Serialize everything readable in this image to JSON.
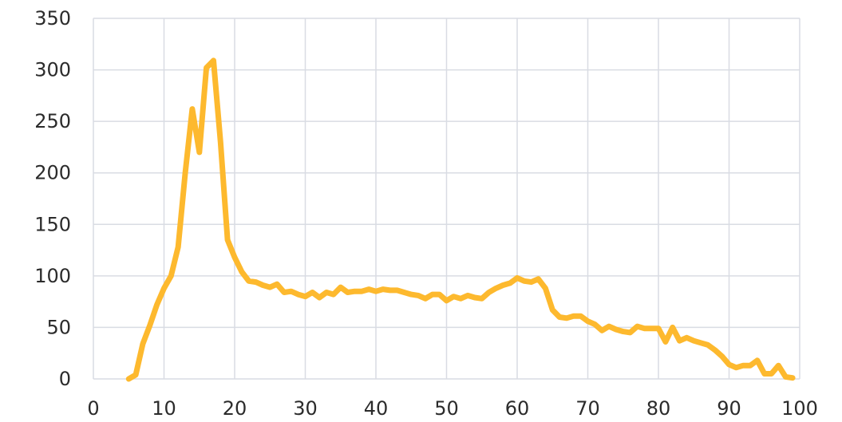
{
  "chart_data": {
    "type": "line",
    "title": "",
    "xlabel": "",
    "ylabel": "",
    "xlim": [
      0,
      100
    ],
    "ylim": [
      0,
      350
    ],
    "x_ticks": [
      0,
      10,
      20,
      30,
      40,
      50,
      60,
      70,
      80,
      90,
      100
    ],
    "y_ticks": [
      0,
      50,
      100,
      150,
      200,
      250,
      300,
      350
    ],
    "grid": true,
    "legend": "none",
    "series": [
      {
        "color": "#FDB92E",
        "x": [
          5,
          6,
          7,
          8,
          9,
          10,
          11,
          12,
          13,
          14,
          15,
          16,
          17,
          18,
          19,
          20,
          21,
          22,
          23,
          24,
          25,
          26,
          27,
          28,
          29,
          30,
          31,
          32,
          33,
          34,
          35,
          36,
          37,
          38,
          39,
          40,
          41,
          42,
          43,
          44,
          45,
          46,
          47,
          48,
          49,
          50,
          51,
          52,
          53,
          54,
          55,
          56,
          57,
          58,
          59,
          60,
          61,
          62,
          63,
          64,
          65,
          66,
          67,
          68,
          69,
          70,
          71,
          72,
          73,
          74,
          75,
          76,
          77,
          78,
          79,
          80,
          81,
          82,
          83,
          84,
          85,
          86,
          87,
          88,
          89,
          90,
          91,
          92,
          93,
          94,
          95,
          96,
          97,
          98,
          99
        ],
        "y": [
          0,
          4,
          34,
          52,
          72,
          88,
          100,
          128,
          200,
          262,
          220,
          302,
          309,
          230,
          135,
          118,
          104,
          95,
          94,
          91,
          89,
          92,
          84,
          85,
          82,
          80,
          84,
          79,
          84,
          82,
          89,
          84,
          85,
          85,
          87,
          85,
          87,
          86,
          86,
          84,
          82,
          81,
          78,
          82,
          82,
          76,
          80,
          78,
          81,
          79,
          78,
          84,
          88,
          91,
          93,
          98,
          95,
          94,
          97,
          88,
          67,
          60,
          59,
          61,
          61,
          56,
          53,
          47,
          51,
          48,
          46,
          45,
          51,
          49,
          49,
          49,
          36,
          50,
          37,
          40,
          37,
          35,
          33,
          28,
          22,
          14,
          11,
          13,
          13,
          18,
          5,
          5,
          13,
          2,
          1
        ]
      }
    ]
  }
}
